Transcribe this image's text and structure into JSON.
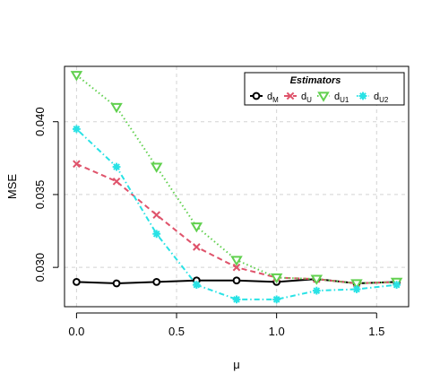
{
  "chart_data": {
    "type": "line",
    "xlabel": "μ",
    "ylabel": "MSE",
    "xlim": [
      -0.06,
      1.66
    ],
    "ylim": [
      0.0273,
      0.0438
    ],
    "x_ticks": [
      0.0,
      0.5,
      1.0,
      1.5
    ],
    "x_tick_labels": [
      "0.0",
      "0.5",
      "1.0",
      "1.5"
    ],
    "y_ticks": [
      0.03,
      0.035,
      0.04
    ],
    "y_tick_labels": [
      "0.030",
      "0.035",
      "0.040"
    ],
    "grid": true,
    "x": [
      0.0,
      0.2,
      0.4,
      0.6,
      0.8,
      1.0,
      1.2,
      1.4,
      1.6
    ],
    "legend": {
      "title": "Estimators",
      "position": "top-right"
    },
    "series": [
      {
        "name": "d",
        "subscript": "M",
        "color": "#000000",
        "line_style": "solid",
        "marker": "circle",
        "values": [
          0.029,
          0.0289,
          0.029,
          0.0291,
          0.0291,
          0.029,
          0.0292,
          0.0289,
          0.029
        ]
      },
      {
        "name": "d",
        "subscript": "U",
        "color": "#df536b",
        "line_style": "dashed",
        "marker": "x",
        "values": [
          0.0371,
          0.0359,
          0.0336,
          0.0314,
          0.03,
          0.0293,
          0.0292,
          0.0289,
          0.029
        ]
      },
      {
        "name": "d",
        "subscript": "U1",
        "color": "#61d04f",
        "line_style": "dotted",
        "marker": "triangle-down",
        "values": [
          0.0432,
          0.041,
          0.0369,
          0.0328,
          0.0305,
          0.0293,
          0.0292,
          0.0289,
          0.029
        ]
      },
      {
        "name": "d",
        "subscript": "U2",
        "color": "#28e2e5",
        "line_style": "dotdash",
        "marker": "asterisk",
        "values": [
          0.0395,
          0.0369,
          0.0323,
          0.0288,
          0.0278,
          0.0278,
          0.0284,
          0.0285,
          0.0288
        ]
      }
    ]
  }
}
